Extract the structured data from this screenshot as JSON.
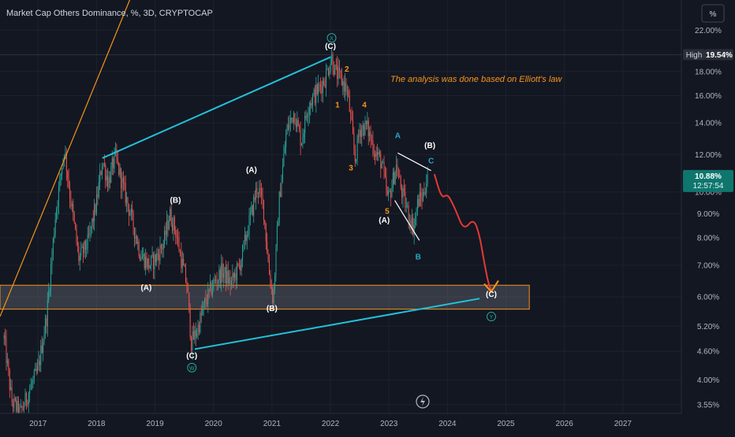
{
  "header": {
    "title": "Market Cap Others Dominance, %, 3D, CRYPTOCAP",
    "unit_button": "%"
  },
  "chart_data": {
    "type": "candlestick",
    "title": "Market Cap Others Dominance, %, 3D, CRYPTOCAP",
    "x_ticks": [
      "2017",
      "2018",
      "2019",
      "2020",
      "2021",
      "2022",
      "2023",
      "2024",
      "2025",
      "2026",
      "2027"
    ],
    "y_scale": "log",
    "y_ticks": [
      "22.00%",
      "18.00%",
      "16.00%",
      "14.00%",
      "12.00%",
      "10.00%",
      "9.00%",
      "8.00%",
      "7.00%",
      "6.00%",
      "5.20%",
      "4.60%",
      "4.00%",
      "3.55%"
    ],
    "ylim": [
      3.4,
      25.5
    ],
    "xlim": [
      2016.35,
      2028.0
    ],
    "high_label": {
      "label": "High",
      "value": "19.54%"
    },
    "last_price": {
      "value": "10.88%",
      "countdown": "12:57:54"
    },
    "annotation": "The analysis was done based on Elliott's law",
    "price_path": [
      [
        2016.42,
        4.9
      ],
      [
        2016.55,
        3.6
      ],
      [
        2016.7,
        3.4
      ],
      [
        2016.85,
        3.8
      ],
      [
        2017.0,
        4.2
      ],
      [
        2017.15,
        5.5
      ],
      [
        2017.3,
        9.0
      ],
      [
        2017.45,
        12.4
      ],
      [
        2017.55,
        9.8
      ],
      [
        2017.7,
        7.2
      ],
      [
        2017.85,
        7.8
      ],
      [
        2018.0,
        9.5
      ],
      [
        2018.1,
        11.7
      ],
      [
        2018.2,
        10.5
      ],
      [
        2018.32,
        11.9
      ],
      [
        2018.45,
        10.3
      ],
      [
        2018.6,
        8.8
      ],
      [
        2018.75,
        7.4
      ],
      [
        2018.9,
        7.0
      ],
      [
        2019.0,
        7.2
      ],
      [
        2019.15,
        7.8
      ],
      [
        2019.25,
        9.0
      ],
      [
        2019.35,
        8.3
      ],
      [
        2019.45,
        7.2
      ],
      [
        2019.55,
        6.3
      ],
      [
        2019.62,
        4.8
      ],
      [
        2019.72,
        5.1
      ],
      [
        2019.85,
        5.8
      ],
      [
        2020.0,
        6.4
      ],
      [
        2020.15,
        6.8
      ],
      [
        2020.3,
        6.4
      ],
      [
        2020.45,
        7.0
      ],
      [
        2020.6,
        8.5
      ],
      [
        2020.75,
        10.3
      ],
      [
        2020.85,
        9.4
      ],
      [
        2020.95,
        6.8
      ],
      [
        2021.02,
        5.9
      ],
      [
        2021.12,
        9.5
      ],
      [
        2021.25,
        13.5
      ],
      [
        2021.38,
        14.8
      ],
      [
        2021.5,
        12.8
      ],
      [
        2021.62,
        15.3
      ],
      [
        2021.75,
        16.2
      ],
      [
        2021.9,
        17.3
      ],
      [
        2022.02,
        19.3
      ],
      [
        2022.08,
        18.0
      ],
      [
        2022.18,
        17.3
      ],
      [
        2022.28,
        16.5
      ],
      [
        2022.35,
        14.2
      ],
      [
        2022.42,
        11.7
      ],
      [
        2022.5,
        13.6
      ],
      [
        2022.62,
        13.8
      ],
      [
        2022.75,
        12.3
      ],
      [
        2022.88,
        11.5
      ],
      [
        2022.98,
        9.6
      ],
      [
        2023.05,
        10.3
      ],
      [
        2023.12,
        11.4
      ],
      [
        2023.22,
        10.0
      ],
      [
        2023.32,
        9.1
      ],
      [
        2023.42,
        8.4
      ],
      [
        2023.5,
        9.6
      ],
      [
        2023.58,
        9.8
      ],
      [
        2023.66,
        10.88
      ]
    ],
    "projection": [
      [
        2023.78,
        10.88
      ],
      [
        2023.9,
        9.7
      ],
      [
        2024.0,
        9.9
      ],
      [
        2024.08,
        9.5
      ],
      [
        2024.15,
        9.1
      ],
      [
        2024.28,
        8.3
      ],
      [
        2024.45,
        8.8
      ],
      [
        2024.55,
        8.1
      ],
      [
        2024.62,
        7.2
      ],
      [
        2024.7,
        6.4
      ],
      [
        2024.75,
        6.2
      ]
    ],
    "zones": [
      {
        "kind": "support-box",
        "x0": 2016.35,
        "x1": 2025.4,
        "y0": 5.65,
        "y1": 6.35
      }
    ],
    "trendlines": [
      {
        "kind": "resistance",
        "from": [
          2018.1,
          11.8
        ],
        "to": [
          2022.0,
          19.3
        ]
      },
      {
        "kind": "support",
        "from": [
          2019.68,
          4.65
        ],
        "to": [
          2024.55,
          5.95
        ]
      },
      {
        "kind": "uptrend",
        "from": [
          2016.35,
          5.45
        ],
        "to": [
          2018.65,
          27.0
        ]
      },
      {
        "kind": "channel",
        "from": [
          2023.15,
          12.1
        ],
        "to": [
          2023.72,
          11.1
        ]
      },
      {
        "kind": "channel",
        "from": [
          2023.1,
          9.6
        ],
        "to": [
          2023.52,
          7.9
        ]
      }
    ],
    "wave_labels": [
      {
        "text": "(A)",
        "x": 2018.85,
        "y": 6.2,
        "color": "white"
      },
      {
        "text": "(B)",
        "x": 2019.35,
        "y": 9.5,
        "color": "white"
      },
      {
        "text": "(C)",
        "x": 2019.63,
        "y": 4.45,
        "color": "white"
      },
      {
        "text": "(A)",
        "x": 2020.65,
        "y": 11.0,
        "color": "white"
      },
      {
        "text": "(B)",
        "x": 2021.0,
        "y": 5.6,
        "color": "white"
      },
      {
        "text": "(C)",
        "x": 2022.0,
        "y": 20.1,
        "color": "white"
      },
      {
        "text": "(A)",
        "x": 2022.92,
        "y": 8.6,
        "color": "white"
      },
      {
        "text": "(B)",
        "x": 2023.7,
        "y": 12.4,
        "color": "white"
      },
      {
        "text": "(C)",
        "x": 2024.75,
        "y": 6.0,
        "color": "white"
      },
      {
        "text": "1",
        "x": 2022.12,
        "y": 15.1,
        "color": "orange"
      },
      {
        "text": "2",
        "x": 2022.28,
        "y": 18.0,
        "color": "orange"
      },
      {
        "text": "3",
        "x": 2022.35,
        "y": 11.1,
        "color": "orange"
      },
      {
        "text": "4",
        "x": 2022.58,
        "y": 15.1,
        "color": "orange"
      },
      {
        "text": "5",
        "x": 2022.97,
        "y": 9.0,
        "color": "orange"
      },
      {
        "text": "A",
        "x": 2023.15,
        "y": 13.0,
        "color": "teal"
      },
      {
        "text": "B",
        "x": 2023.5,
        "y": 7.2,
        "color": "teal"
      },
      {
        "text": "C",
        "x": 2023.72,
        "y": 11.5,
        "color": "teal"
      }
    ],
    "circle_labels": [
      {
        "text": "W",
        "x": 2019.63,
        "y": 4.25
      },
      {
        "text": "X",
        "x": 2022.02,
        "y": 21.2
      },
      {
        "text": "Y",
        "x": 2024.75,
        "y": 5.45
      }
    ],
    "colors": {
      "background": "#131722",
      "up_candle": "#26a69a",
      "down_candle": "#ef5350",
      "cyan_line": "#22c1d8",
      "orange_line": "#f7931a",
      "projection": "#e53935",
      "annotation": "#f7931a",
      "white_label": "#ffffff",
      "teal_label": "#26a6c8",
      "orange_label": "#f7931a",
      "price_tag": "#0f766e",
      "high_tag": "#2a2e39"
    }
  }
}
